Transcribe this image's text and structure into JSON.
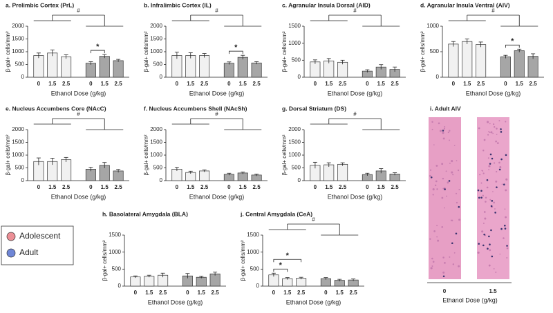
{
  "legend": {
    "items": [
      {
        "name": "Adolescent",
        "color": "#ec8f96"
      },
      {
        "name": "Adult",
        "color": "#6f86d6"
      }
    ]
  },
  "chart_data": [
    {
      "type": "bar",
      "title": "a. Prelimbic Cortex (PrL)",
      "x_label": "Ethanol Dose (g/kg)",
      "y_label": "β-gal+ cells/mm²",
      "categories": [
        "0",
        "1.5",
        "2.5"
      ],
      "ylim": [
        0,
        2000
      ],
      "yticks": [
        0,
        500,
        1000,
        1500,
        2000
      ],
      "series": [
        {
          "color": "#f1f1f1",
          "values": [
            850,
            950,
            800
          ],
          "errors": [
            100,
            120,
            80
          ]
        },
        {
          "color": "#a6a6a6",
          "values": [
            550,
            820,
            650
          ],
          "errors": [
            60,
            70,
            50
          ]
        }
      ],
      "group_test": "#",
      "pair_tests": [
        {
          "label": "*",
          "series": 1,
          "pair": [
            0,
            1
          ]
        }
      ]
    },
    {
      "type": "bar",
      "title": "b. Infralimbic Cortex (IL)",
      "x_label": "Ethanol Dose (g/kg)",
      "y_label": "β-gal+ cells/mm²",
      "categories": [
        "0",
        "1.5",
        "2.5"
      ],
      "ylim": [
        0,
        2000
      ],
      "yticks": [
        0,
        500,
        1000,
        1500,
        2000
      ],
      "series": [
        {
          "color": "#f1f1f1",
          "values": [
            850,
            850,
            850
          ],
          "errors": [
            130,
            110,
            80
          ]
        },
        {
          "color": "#a6a6a6",
          "values": [
            550,
            780,
            560
          ],
          "errors": [
            50,
            80,
            50
          ]
        }
      ],
      "group_test": "#",
      "pair_tests": [
        {
          "label": "*",
          "series": 1,
          "pair": [
            0,
            1
          ]
        }
      ]
    },
    {
      "type": "bar",
      "title": "c. Agranular Insula Dorsal (AID)",
      "x_label": "Ethanol Dose (g/kg)",
      "y_label": "β-gal+ cells/mm²",
      "categories": [
        "0",
        "1.5",
        "2.5"
      ],
      "ylim": [
        0,
        1500
      ],
      "yticks": [
        0,
        500,
        1000,
        1500
      ],
      "series": [
        {
          "color": "#f1f1f1",
          "values": [
            450,
            480,
            440
          ],
          "errors": [
            60,
            70,
            60
          ]
        },
        {
          "color": "#a6a6a6",
          "values": [
            180,
            300,
            230
          ],
          "errors": [
            40,
            70,
            70
          ]
        }
      ],
      "group_test": "#",
      "pair_tests": []
    },
    {
      "type": "bar",
      "title": "d. Agranular Insula Ventral (AIV)",
      "x_label": "Ethanol Dose (g/kg)",
      "y_label": "β-gal+ cells/mm²",
      "categories": [
        "0",
        "1.5",
        "2.5"
      ],
      "ylim": [
        0,
        1000
      ],
      "yticks": [
        0,
        500,
        1000
      ],
      "series": [
        {
          "color": "#f1f1f1",
          "values": [
            650,
            700,
            640
          ],
          "errors": [
            50,
            50,
            50
          ]
        },
        {
          "color": "#a6a6a6",
          "values": [
            400,
            520,
            410
          ],
          "errors": [
            30,
            30,
            50
          ]
        }
      ],
      "group_test": "#",
      "pair_tests": [
        {
          "label": "*",
          "series": 1,
          "pair": [
            0,
            1
          ]
        }
      ]
    },
    {
      "type": "bar",
      "title": "e. Nucleus Accumbens Core (NAcC)",
      "x_label": "Ethanol Dose (g/kg)",
      "y_label": "β-gal+ cells/mm²",
      "categories": [
        "0",
        "1.5",
        "2.5"
      ],
      "ylim": [
        0,
        2000
      ],
      "yticks": [
        0,
        500,
        1000,
        1500,
        2000
      ],
      "series": [
        {
          "color": "#f1f1f1",
          "values": [
            750,
            750,
            820
          ],
          "errors": [
            140,
            130,
            90
          ]
        },
        {
          "color": "#a6a6a6",
          "values": [
            450,
            600,
            380
          ],
          "errors": [
            80,
            110,
            60
          ]
        }
      ],
      "group_test": "#",
      "pair_tests": []
    },
    {
      "type": "bar",
      "title": "f. Nucleus Accumbens Shell (NAcSh)",
      "x_label": "Ethanol Dose (g/kg)",
      "y_label": "β-gal+ cells/mm²",
      "categories": [
        "0",
        "1.5",
        "2.5"
      ],
      "ylim": [
        0,
        2000
      ],
      "yticks": [
        0,
        500,
        1000,
        1500,
        2000
      ],
      "series": [
        {
          "color": "#f1f1f1",
          "values": [
            450,
            320,
            380
          ],
          "errors": [
            70,
            50,
            40
          ]
        },
        {
          "color": "#a6a6a6",
          "values": [
            250,
            300,
            220
          ],
          "errors": [
            40,
            40,
            40
          ]
        }
      ],
      "group_test": "#",
      "pair_tests": []
    },
    {
      "type": "bar",
      "title": "g. Dorsal Striatum (DS)",
      "x_label": "Ethanol Dose (g/kg)",
      "y_label": "β-gal+ cells/mm²",
      "categories": [
        "0",
        "1.5",
        "2.5"
      ],
      "ylim": [
        0,
        2000
      ],
      "yticks": [
        0,
        500,
        1000,
        1500,
        2000
      ],
      "series": [
        {
          "color": "#f1f1f1",
          "values": [
            600,
            620,
            640
          ],
          "errors": [
            120,
            80,
            60
          ]
        },
        {
          "color": "#a6a6a6",
          "values": [
            240,
            380,
            260
          ],
          "errors": [
            50,
            90,
            50
          ]
        }
      ],
      "group_test": "#",
      "pair_tests": []
    },
    {
      "type": "bar",
      "title": "h. Basolateral Amygdala (BLA)",
      "x_label": "Ethanol Dose (g/kg)",
      "y_label": "β-gal+ cells/mm²",
      "categories": [
        "0",
        "1.5",
        "2.5"
      ],
      "ylim": [
        0,
        1500
      ],
      "yticks": [
        0,
        500,
        1000,
        1500
      ],
      "series": [
        {
          "color": "#f1f1f1",
          "values": [
            270,
            290,
            320
          ],
          "errors": [
            30,
            30,
            60
          ]
        },
        {
          "color": "#a6a6a6",
          "values": [
            300,
            260,
            360
          ],
          "errors": [
            70,
            30,
            50
          ]
        }
      ],
      "group_test": null,
      "pair_tests": []
    },
    {
      "type": "bar",
      "title": "j. Central Amygdala (CeA)",
      "x_label": "Ethanol Dose (g/kg)",
      "y_label": "β-gal+ cells/mm²",
      "categories": [
        "0",
        "1.5",
        "2.5"
      ],
      "ylim": [
        0,
        1500
      ],
      "yticks": [
        0,
        500,
        1000,
        1500
      ],
      "series": [
        {
          "color": "#f1f1f1",
          "values": [
            330,
            220,
            230
          ],
          "errors": [
            50,
            30,
            30
          ]
        },
        {
          "color": "#a6a6a6",
          "values": [
            220,
            170,
            180
          ],
          "errors": [
            30,
            30,
            30
          ]
        }
      ],
      "group_test": "#",
      "pair_tests": [
        {
          "label": "*",
          "series": 0,
          "pair": [
            0,
            1
          ]
        },
        {
          "label": "*",
          "series": 0,
          "pair": [
            0,
            2
          ]
        }
      ]
    }
  ],
  "image_panel": {
    "title": "i. Adult AIV",
    "categories": [
      "0",
      "1.5"
    ],
    "x_label": "Ethanol Dose (g/kg)"
  }
}
